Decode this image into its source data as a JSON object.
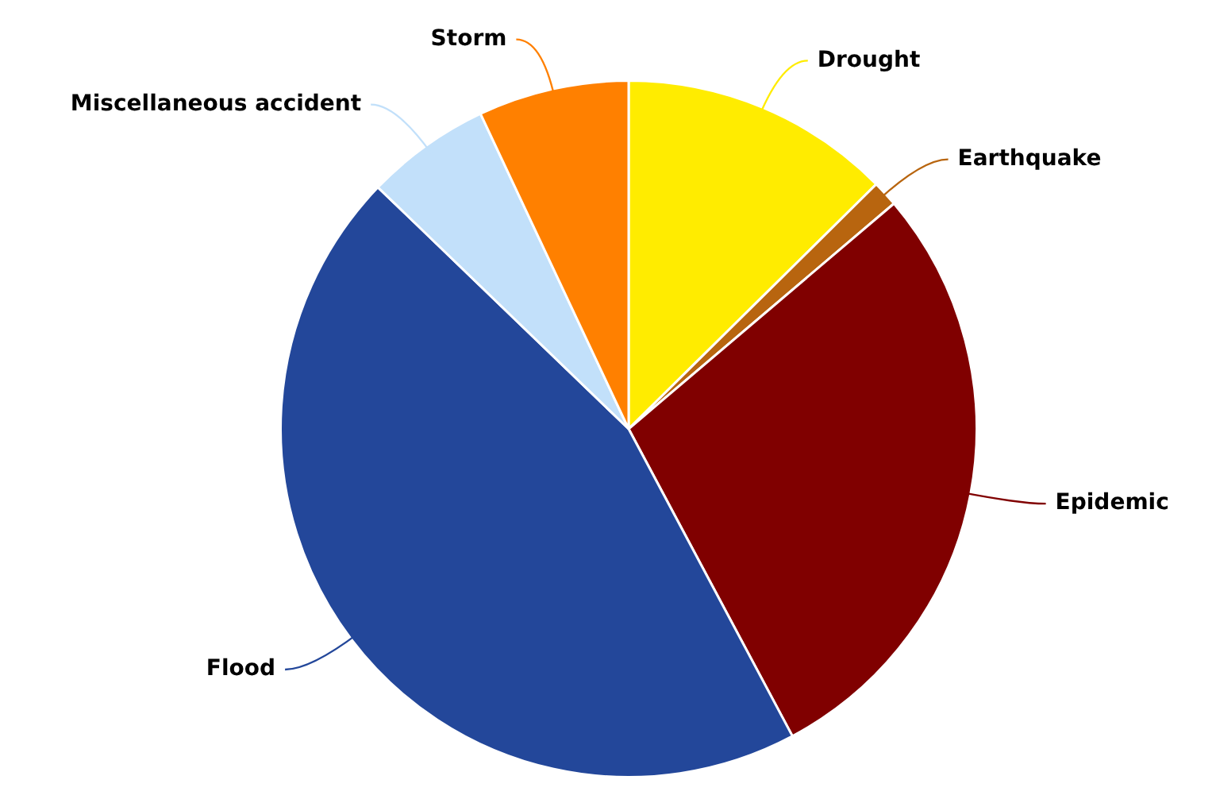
{
  "chart_data": {
    "type": "pie",
    "categories": [
      "Drought",
      "Earthquake",
      "Epidemic",
      "Flood",
      "Miscellaneous accident",
      "Storm"
    ],
    "values": [
      12.6,
      1.2,
      28.4,
      45,
      5.8,
      7
    ],
    "colors": [
      "#ffec00",
      "#b8650f",
      "#800000",
      "#23479a",
      "#c2e0fa",
      "#ff8000"
    ],
    "legend": false
  }
}
